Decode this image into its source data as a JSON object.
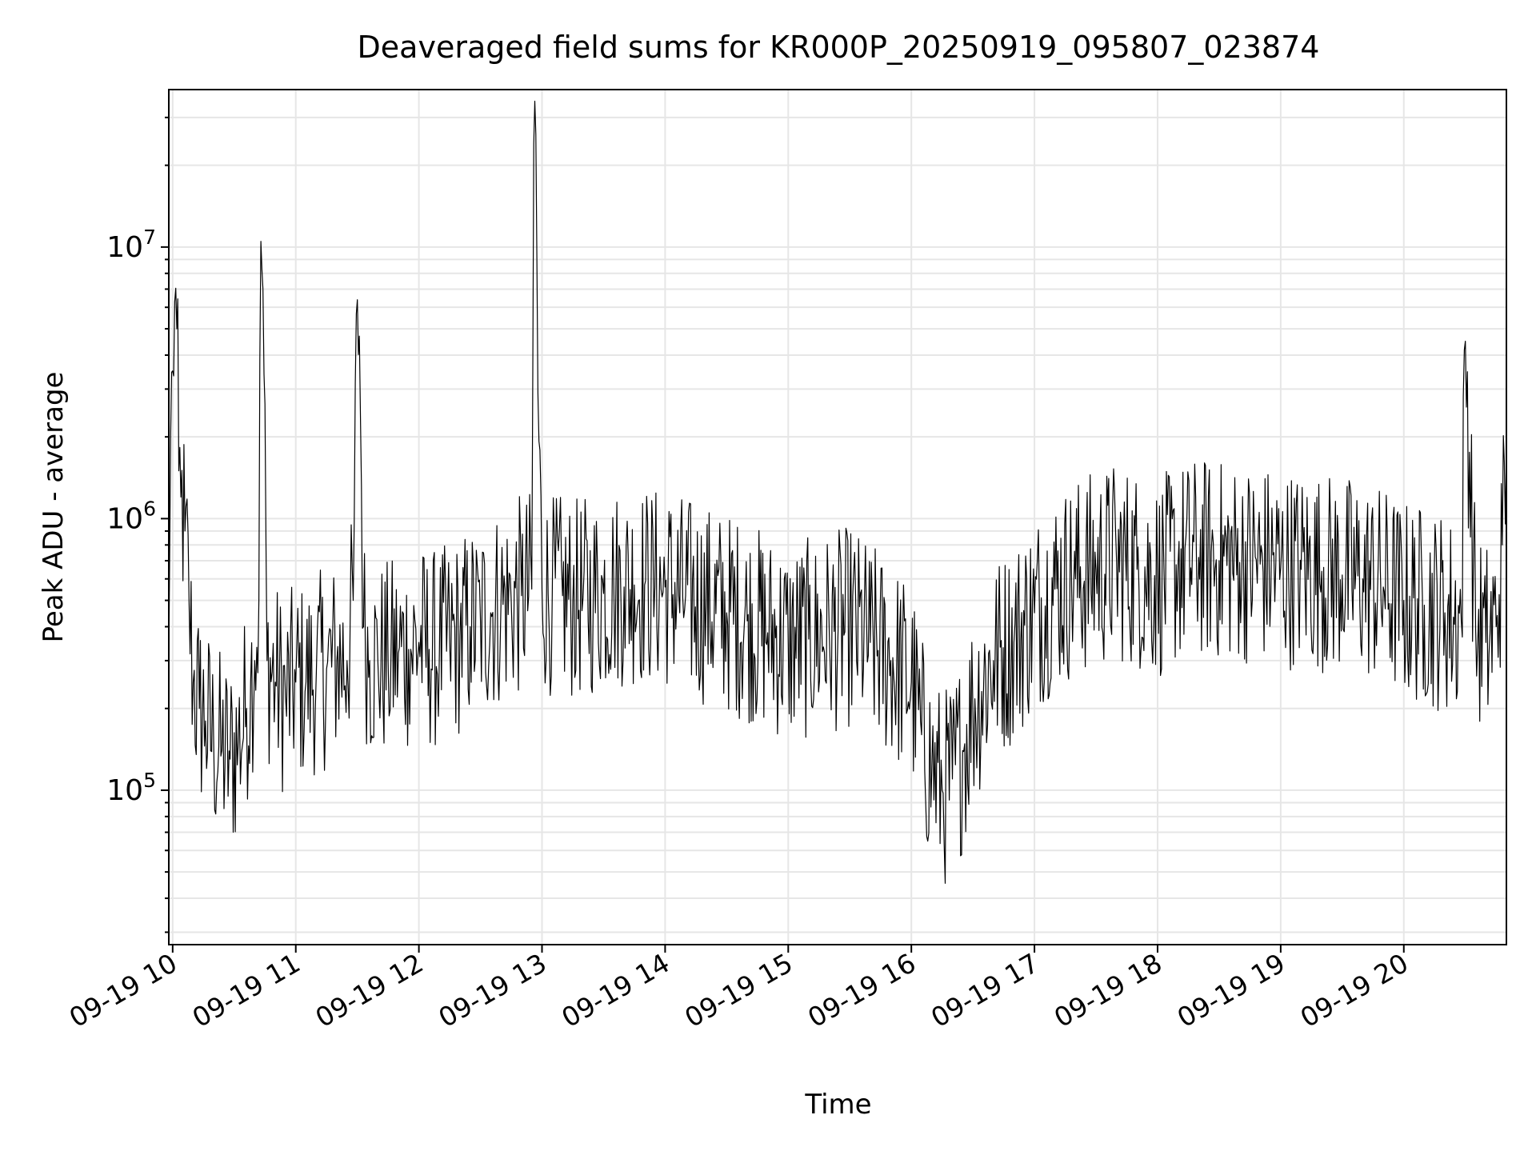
{
  "chart_data": {
    "type": "line",
    "title": "Deaveraged field sums for KR000P_20250919_095807_023874",
    "xlabel": "Time",
    "ylabel": "Peak ADU - average",
    "yscale": "log",
    "ylim": [
      27000,
      38000000
    ],
    "xlim": [
      "2025-09-19T09:58:07",
      "2025-09-19T20:50:00"
    ],
    "x_ticks": [
      {
        "value": "2025-09-19T10:00",
        "label": "09-19 10"
      },
      {
        "value": "2025-09-19T11:00",
        "label": "09-19 11"
      },
      {
        "value": "2025-09-19T12:00",
        "label": "09-19 12"
      },
      {
        "value": "2025-09-19T13:00",
        "label": "09-19 13"
      },
      {
        "value": "2025-09-19T14:00",
        "label": "09-19 14"
      },
      {
        "value": "2025-09-19T15:00",
        "label": "09-19 15"
      },
      {
        "value": "2025-09-19T16:00",
        "label": "09-19 16"
      },
      {
        "value": "2025-09-19T17:00",
        "label": "09-19 17"
      },
      {
        "value": "2025-09-19T18:00",
        "label": "09-19 18"
      },
      {
        "value": "2025-09-19T19:00",
        "label": "09-19 19"
      },
      {
        "value": "2025-09-19T20:00",
        "label": "09-19 20"
      }
    ],
    "y_ticks": [
      {
        "value": 100000,
        "base": "10",
        "exp": "5"
      },
      {
        "value": 1000000,
        "base": "10",
        "exp": "6"
      },
      {
        "value": 10000000,
        "base": "10",
        "exp": "7"
      }
    ],
    "grid": true,
    "line_color": "#000000",
    "grid_color": "#e6e6e6",
    "series": [
      {
        "x": [
          "2025-09-19T09:58:07",
          "2025-09-19T09:59",
          "2025-09-19T10:00",
          "2025-09-19T10:01",
          "2025-09-19T10:02",
          "2025-09-19T10:03",
          "2025-09-19T10:04",
          "2025-09-19T10:06",
          "2025-09-19T10:08",
          "2025-09-19T10:10",
          "2025-09-19T10:13",
          "2025-09-19T10:16",
          "2025-09-19T10:20",
          "2025-09-19T10:24",
          "2025-09-19T10:28",
          "2025-09-19T10:32",
          "2025-09-19T10:36",
          "2025-09-19T10:38",
          "2025-09-19T10:40",
          "2025-09-19T10:42",
          "2025-09-19T10:43",
          "2025-09-19T10:44",
          "2025-09-19T10:46",
          "2025-09-19T10:50",
          "2025-09-19T10:55",
          "2025-09-19T11:00",
          "2025-09-19T11:05",
          "2025-09-19T11:10",
          "2025-09-19T11:15",
          "2025-09-19T11:20",
          "2025-09-19T11:25",
          "2025-09-19T11:28",
          "2025-09-19T11:30",
          "2025-09-19T11:31",
          "2025-09-19T11:33",
          "2025-09-19T11:36",
          "2025-09-19T11:40",
          "2025-09-19T11:45",
          "2025-09-19T11:50",
          "2025-09-19T11:55",
          "2025-09-19T12:00",
          "2025-09-19T12:05",
          "2025-09-19T12:10",
          "2025-09-19T12:15",
          "2025-09-19T12:20",
          "2025-09-19T12:25",
          "2025-09-19T12:30",
          "2025-09-19T12:35",
          "2025-09-19T12:40",
          "2025-09-19T12:45",
          "2025-09-19T12:50",
          "2025-09-19T12:55",
          "2025-09-19T12:56",
          "2025-09-19T12:57",
          "2025-09-19T12:58",
          "2025-09-19T13:00",
          "2025-09-19T13:05",
          "2025-09-19T13:10",
          "2025-09-19T13:15",
          "2025-09-19T13:20",
          "2025-09-19T13:25",
          "2025-09-19T13:30",
          "2025-09-19T13:35",
          "2025-09-19T13:40",
          "2025-09-19T13:45",
          "2025-09-19T13:50",
          "2025-09-19T13:55",
          "2025-09-19T14:00",
          "2025-09-19T14:10",
          "2025-09-19T14:20",
          "2025-09-19T14:30",
          "2025-09-19T14:40",
          "2025-09-19T14:50",
          "2025-09-19T15:00",
          "2025-09-19T15:10",
          "2025-09-19T15:20",
          "2025-09-19T15:30",
          "2025-09-19T15:40",
          "2025-09-19T15:50",
          "2025-09-19T16:00",
          "2025-09-19T16:05",
          "2025-09-19T16:10",
          "2025-09-19T16:15",
          "2025-09-19T16:20",
          "2025-09-19T16:25",
          "2025-09-19T16:30",
          "2025-09-19T16:40",
          "2025-09-19T16:50",
          "2025-09-19T17:00",
          "2025-09-19T17:10",
          "2025-09-19T17:20",
          "2025-09-19T17:30",
          "2025-09-19T17:40",
          "2025-09-19T17:50",
          "2025-09-19T18:00",
          "2025-09-19T18:10",
          "2025-09-19T18:20",
          "2025-09-19T18:30",
          "2025-09-19T18:40",
          "2025-09-19T18:50",
          "2025-09-19T19:00",
          "2025-09-19T19:10",
          "2025-09-19T19:20",
          "2025-09-19T19:30",
          "2025-09-19T19:40",
          "2025-09-19T19:50",
          "2025-09-19T20:00",
          "2025-09-19T20:10",
          "2025-09-19T20:20",
          "2025-09-19T20:28",
          "2025-09-19T20:30",
          "2025-09-19T20:35",
          "2025-09-19T20:40",
          "2025-09-19T20:45",
          "2025-09-19T20:48",
          "2025-09-19T20:50"
        ],
        "y": [
          300000,
          2000000,
          3500000,
          6300000,
          5000000,
          1500000,
          1200000,
          900000,
          500000,
          250000,
          200000,
          180000,
          150000,
          140000,
          130000,
          150000,
          200000,
          250000,
          300000,
          500000,
          10500000,
          7000000,
          300000,
          250000,
          220000,
          250000,
          250000,
          270000,
          280000,
          300000,
          300000,
          500000,
          6400000,
          4700000,
          400000,
          300000,
          300000,
          300000,
          320000,
          330000,
          350000,
          330000,
          330000,
          350000,
          370000,
          400000,
          420000,
          450000,
          480000,
          500000,
          520000,
          550000,
          24000000,
          26000000,
          2900000,
          550000,
          520000,
          520000,
          500000,
          510000,
          520000,
          530000,
          560000,
          560000,
          570000,
          570000,
          560000,
          560000,
          520000,
          480000,
          450000,
          420000,
          380000,
          350000,
          360000,
          380000,
          400000,
          350000,
          300000,
          250000,
          160000,
          120000,
          100000,
          110000,
          140000,
          200000,
          300000,
          350000,
          450000,
          550000,
          600000,
          650000,
          700000,
          650000,
          600000,
          680000,
          720000,
          700000,
          690000,
          680000,
          660000,
          650000,
          640000,
          620000,
          600000,
          560000,
          500000,
          480000,
          450000,
          420000,
          4500000,
          400000,
          350000,
          400000,
          800000,
          1800000
        ]
      }
    ]
  }
}
